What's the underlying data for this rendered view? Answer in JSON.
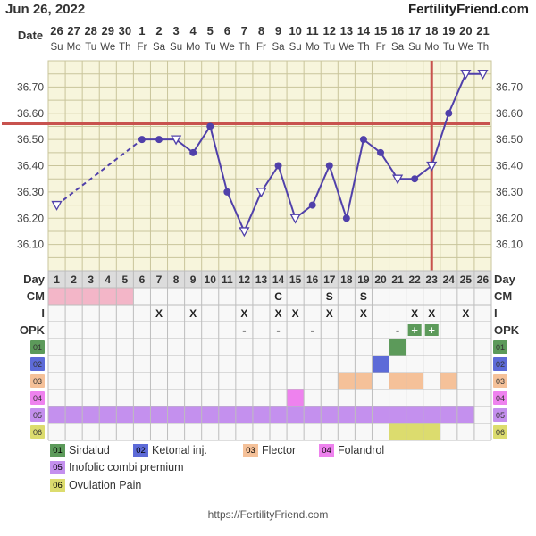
{
  "header": {
    "date": "Jun 26, 2022",
    "site": "FertilityFriend.com"
  },
  "footer": {
    "url": "https://FertilityFriend.com"
  },
  "row_labels": {
    "date": "Date",
    "day": "Day",
    "cm": "CM",
    "intercourse": "I",
    "opk": "OPK"
  },
  "dates": [
    {
      "d": "26",
      "w": "Su"
    },
    {
      "d": "27",
      "w": "Mo"
    },
    {
      "d": "28",
      "w": "Tu"
    },
    {
      "d": "29",
      "w": "We"
    },
    {
      "d": "30",
      "w": "Th"
    },
    {
      "d": "1",
      "w": "Fr"
    },
    {
      "d": "2",
      "w": "Sa"
    },
    {
      "d": "3",
      "w": "Su"
    },
    {
      "d": "4",
      "w": "Mo"
    },
    {
      "d": "5",
      "w": "Tu"
    },
    {
      "d": "6",
      "w": "We"
    },
    {
      "d": "7",
      "w": "Th"
    },
    {
      "d": "8",
      "w": "Fr"
    },
    {
      "d": "9",
      "w": "Sa"
    },
    {
      "d": "10",
      "w": "Su"
    },
    {
      "d": "11",
      "w": "Mo"
    },
    {
      "d": "12",
      "w": "Tu"
    },
    {
      "d": "13",
      "w": "We"
    },
    {
      "d": "14",
      "w": "Th"
    },
    {
      "d": "15",
      "w": "Fr"
    },
    {
      "d": "16",
      "w": "Sa"
    },
    {
      "d": "17",
      "w": "Su"
    },
    {
      "d": "18",
      "w": "Mo"
    },
    {
      "d": "19",
      "w": "Tu"
    },
    {
      "d": "20",
      "w": "We"
    },
    {
      "d": "21",
      "w": "Th"
    }
  ],
  "chart_data": {
    "type": "line",
    "title": "",
    "y_ticks": [
      "36.70",
      "36.60",
      "36.50",
      "36.40",
      "36.30",
      "36.20",
      "36.10"
    ],
    "ylim": [
      36.0,
      36.8
    ],
    "cycle_days": [
      1,
      2,
      3,
      4,
      5,
      6,
      7,
      8,
      9,
      10,
      11,
      12,
      13,
      14,
      15,
      16,
      17,
      18,
      19,
      20,
      21,
      22,
      23,
      24,
      25,
      26
    ],
    "temperatures": [
      {
        "day": 1,
        "temp": 36.25,
        "open": true
      },
      {
        "day": 6,
        "temp": 36.5
      },
      {
        "day": 7,
        "temp": 36.5
      },
      {
        "day": 8,
        "temp": 36.5,
        "open": true
      },
      {
        "day": 9,
        "temp": 36.45
      },
      {
        "day": 10,
        "temp": 36.55
      },
      {
        "day": 11,
        "temp": 36.3
      },
      {
        "day": 12,
        "temp": 36.15,
        "open": true
      },
      {
        "day": 13,
        "temp": 36.3,
        "open": true
      },
      {
        "day": 14,
        "temp": 36.4
      },
      {
        "day": 15,
        "temp": 36.2,
        "open": true
      },
      {
        "day": 16,
        "temp": 36.25
      },
      {
        "day": 17,
        "temp": 36.4
      },
      {
        "day": 18,
        "temp": 36.2
      },
      {
        "day": 19,
        "temp": 36.5
      },
      {
        "day": 20,
        "temp": 36.45
      },
      {
        "day": 21,
        "temp": 36.35,
        "open": true
      },
      {
        "day": 22,
        "temp": 36.35
      },
      {
        "day": 23,
        "temp": 36.4,
        "open": true
      },
      {
        "day": 24,
        "temp": 36.6
      },
      {
        "day": 25,
        "temp": 36.75,
        "open": true
      },
      {
        "day": 26,
        "temp": 36.75,
        "open": true
      }
    ],
    "dashed_segment_days": [
      1,
      6
    ],
    "coverline_temp": 36.56,
    "ovulation_day": 23,
    "colors": {
      "line": "#5040aa",
      "coverline": "#c8524e",
      "grid_bg": "#f7f5dc",
      "grid_line": "#c9c59b"
    }
  },
  "rows": {
    "cm": {
      "pink_days": [
        1,
        2,
        3,
        4,
        5
      ],
      "marks": [
        {
          "day": 14,
          "text": "C"
        },
        {
          "day": 17,
          "text": "S"
        },
        {
          "day": 19,
          "text": "S"
        }
      ]
    },
    "intercourse": {
      "x_days": [
        7,
        9,
        12,
        14,
        15,
        17,
        19,
        22,
        23,
        25
      ],
      "symbol": "X"
    },
    "opk": {
      "marks": [
        {
          "day": 12,
          "text": "-"
        },
        {
          "day": 14,
          "text": "-"
        },
        {
          "day": 16,
          "text": "-"
        },
        {
          "day": 21,
          "text": "-"
        },
        {
          "day": 22,
          "text": "+",
          "positive": true
        },
        {
          "day": 23,
          "text": "+",
          "positive": true
        }
      ]
    },
    "meds": [
      {
        "code": "01",
        "label": "Sirdalud",
        "color": "#5c9a5a",
        "days": [
          21
        ]
      },
      {
        "code": "02",
        "label": "Ketonal inj.",
        "color": "#5d6bd8",
        "days": [
          20
        ]
      },
      {
        "code": "03",
        "label": "Flector",
        "color": "#f5c199",
        "days": [
          18,
          19,
          21,
          22,
          24
        ]
      },
      {
        "code": "04",
        "label": "Folandrol",
        "color": "#ee82ee",
        "days": [
          15
        ]
      },
      {
        "code": "05",
        "label": "Inofolic combi premium",
        "color": "#c490ee",
        "days": [
          1,
          2,
          3,
          4,
          5,
          6,
          7,
          8,
          9,
          10,
          11,
          12,
          13,
          14,
          15,
          16,
          17,
          18,
          19,
          20,
          21,
          22,
          23,
          24,
          25
        ]
      },
      {
        "code": "06",
        "label": "Ovulation Pain",
        "color": "#dcdc6e",
        "days": [
          21,
          22,
          23
        ]
      }
    ]
  }
}
